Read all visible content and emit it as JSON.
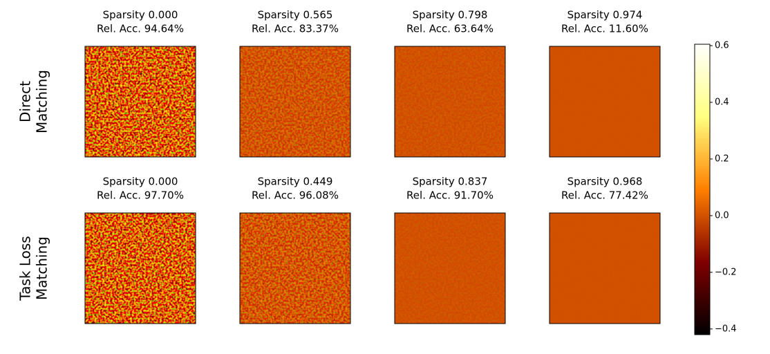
{
  "chart_data": {
    "type": "heatmap",
    "colormap": "afmhot",
    "rows": [
      {
        "label": [
          "Direct",
          "Matching"
        ],
        "panels": [
          {
            "sparsity": {
              "value": 0.0,
              "label": "Sparsity 0.000"
            },
            "subtitle": "Rel. Acc. 94.64%"
          },
          {
            "sparsity": {
              "value": 0.565,
              "label": "Sparsity 0.565"
            },
            "subtitle": "Rel. Acc. 83.37%"
          },
          {
            "sparsity": {
              "value": 0.798,
              "label": "Sparsity 0.798"
            },
            "subtitle": "Rel. Acc. 63.64%"
          },
          {
            "sparsity": {
              "value": 0.974,
              "label": "Sparsity 0.974"
            },
            "subtitle": "Rel. Acc. 11.60%"
          }
        ]
      },
      {
        "label": [
          "Task Loss",
          "Matching"
        ],
        "panels": [
          {
            "sparsity": {
              "value": 0.0,
              "label": "Sparsity 0.000"
            },
            "subtitle": "Rel. Acc. 97.70%"
          },
          {
            "sparsity": {
              "value": 0.449,
              "label": "Sparsity 0.449"
            },
            "subtitle": "Rel. Acc. 96.08%"
          },
          {
            "sparsity": {
              "value": 0.837,
              "label": "Sparsity 0.837"
            },
            "subtitle": "Rel. Acc. 91.70%"
          },
          {
            "sparsity": {
              "value": 0.968,
              "label": "Sparsity 0.968"
            },
            "subtitle": "Rel. Acc. 77.42%"
          }
        ]
      }
    ],
    "colorbar": {
      "lim": [
        -0.42,
        0.605
      ],
      "ticks": [
        {
          "value": -0.4,
          "label": "−0.4"
        },
        {
          "value": -0.2,
          "label": "−0.2"
        },
        {
          "value": 0,
          "label": "0.0"
        },
        0.2,
        0.4,
        0.6
      ]
    }
  }
}
